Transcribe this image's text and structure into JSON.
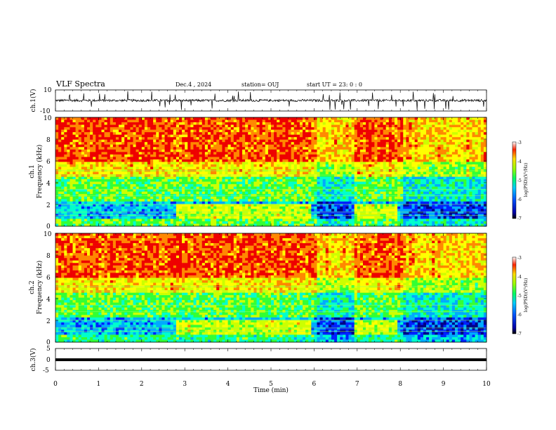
{
  "header": {
    "title": "VLF Spectra",
    "date": "Dec.4  , 2024",
    "station": "station= OUJ",
    "start": "start  UT  =   23: 0  : 0"
  },
  "chart_data": [
    {
      "type": "line",
      "panel": "ch1-waveform",
      "ylabel": "ch.1(V)",
      "ylim": [
        -10,
        10
      ],
      "yticks": [
        "10",
        "-10"
      ],
      "xlim": [
        0,
        10
      ],
      "description_values": {
        "baseline": 0
      }
    },
    {
      "type": "heatmap",
      "panel": "ch1-spectrogram",
      "ylabel": "ch.1\nFrequency  (kHz)",
      "ylabel_lines": [
        "ch.1",
        "Frequency  (kHz)"
      ],
      "ylim": [
        0,
        10
      ],
      "yticks": [
        "0",
        "2",
        "4",
        "6",
        "8",
        "10"
      ],
      "xlim": [
        0,
        10
      ],
      "colorbar": {
        "label": "log(PSD)(V²/Hz)",
        "range": [
          -7,
          -3
        ],
        "ticks": [
          "-3",
          "-4",
          "-5",
          "-6",
          "-7"
        ]
      }
    },
    {
      "type": "heatmap",
      "panel": "ch2-spectrogram",
      "ylabel": "ch.2\nFrequency  (kHz)",
      "ylabel_lines": [
        "ch.2",
        "Frequency  (kHz)"
      ],
      "ylim": [
        0,
        10
      ],
      "yticks": [
        "0",
        "2",
        "4",
        "6",
        "8",
        "10"
      ],
      "xlim": [
        0,
        10
      ],
      "colorbar": {
        "label": "log(PSD)(V²/Hz)",
        "range": [
          -7,
          -3
        ],
        "ticks": [
          "-3",
          "-4",
          "-5",
          "-6",
          "-7"
        ]
      }
    },
    {
      "type": "line",
      "panel": "ch3-waveform",
      "ylabel": "ch.3(V)",
      "ylim": [
        -5,
        5
      ],
      "yticks": [
        "5",
        "0",
        "-5"
      ],
      "xlim": [
        0,
        10
      ],
      "xlabel": "Time  (min)",
      "xticks": [
        "0",
        "1",
        "2",
        "3",
        "4",
        "5",
        "6",
        "7",
        "8",
        "9",
        "10"
      ],
      "description_values": {
        "level": -1.2
      }
    }
  ],
  "colors": {
    "colormap": [
      "#000088",
      "#0022ff",
      "#00aaff",
      "#00ffcc",
      "#33ff33",
      "#ccff00",
      "#ffff00",
      "#ff8800",
      "#ee0000"
    ]
  }
}
